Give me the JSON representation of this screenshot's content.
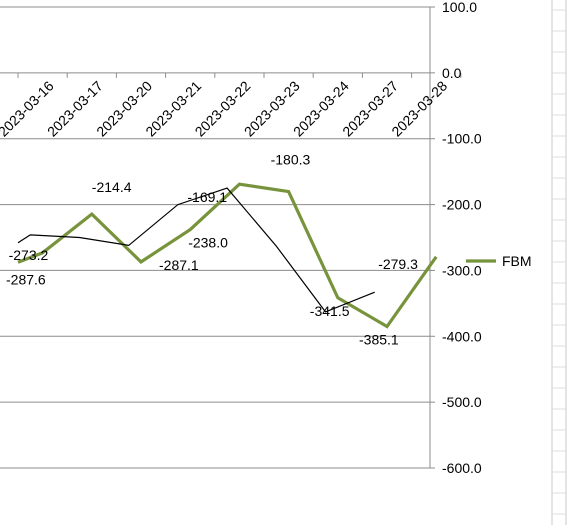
{
  "chart_data": {
    "type": "line",
    "categories": [
      "2023-03-16",
      "2023-03-17",
      "2023-03-20",
      "2023-03-21",
      "2023-03-22",
      "2023-03-23",
      "2023-03-24",
      "2023-03-27",
      "2023-03-28"
    ],
    "ylim": [
      -600,
      100
    ],
    "yticks": [
      100,
      0,
      -100,
      -200,
      -300,
      -400,
      -500,
      -600
    ],
    "ytick_labels": [
      "100.0",
      "0.0",
      "-100.0",
      "-200.0",
      "-300.0",
      "-400.0",
      "-500.0",
      "-600.0"
    ],
    "grid": true,
    "legend_position": "right",
    "series": [
      {
        "name": "FBM",
        "color": "#77933c",
        "values": [
          -287.6,
          -273.2,
          -214.4,
          -287.1,
          -238.0,
          -169.1,
          -180.3,
          -341.5,
          -385.1,
          -279.3
        ],
        "x": [
          -0.5,
          0,
          1,
          2,
          3,
          4,
          5,
          6,
          7,
          8
        ],
        "labels": [
          "-287.6",
          "-273.2",
          "-214.4",
          "-287.1",
          "-238.0",
          "-169.1",
          "-180.3",
          "-341.5",
          "-385.1",
          "-279.3"
        ]
      },
      {
        "color": "#000000",
        "values": [
          -258,
          -246,
          -250,
          -262,
          -200,
          -175,
          -263,
          -363,
          -333
        ],
        "x": [
          -0.5,
          -0.25,
          0.75,
          1.75,
          2.75,
          3.75,
          4.75,
          5.75,
          6.75
        ]
      }
    ]
  }
}
